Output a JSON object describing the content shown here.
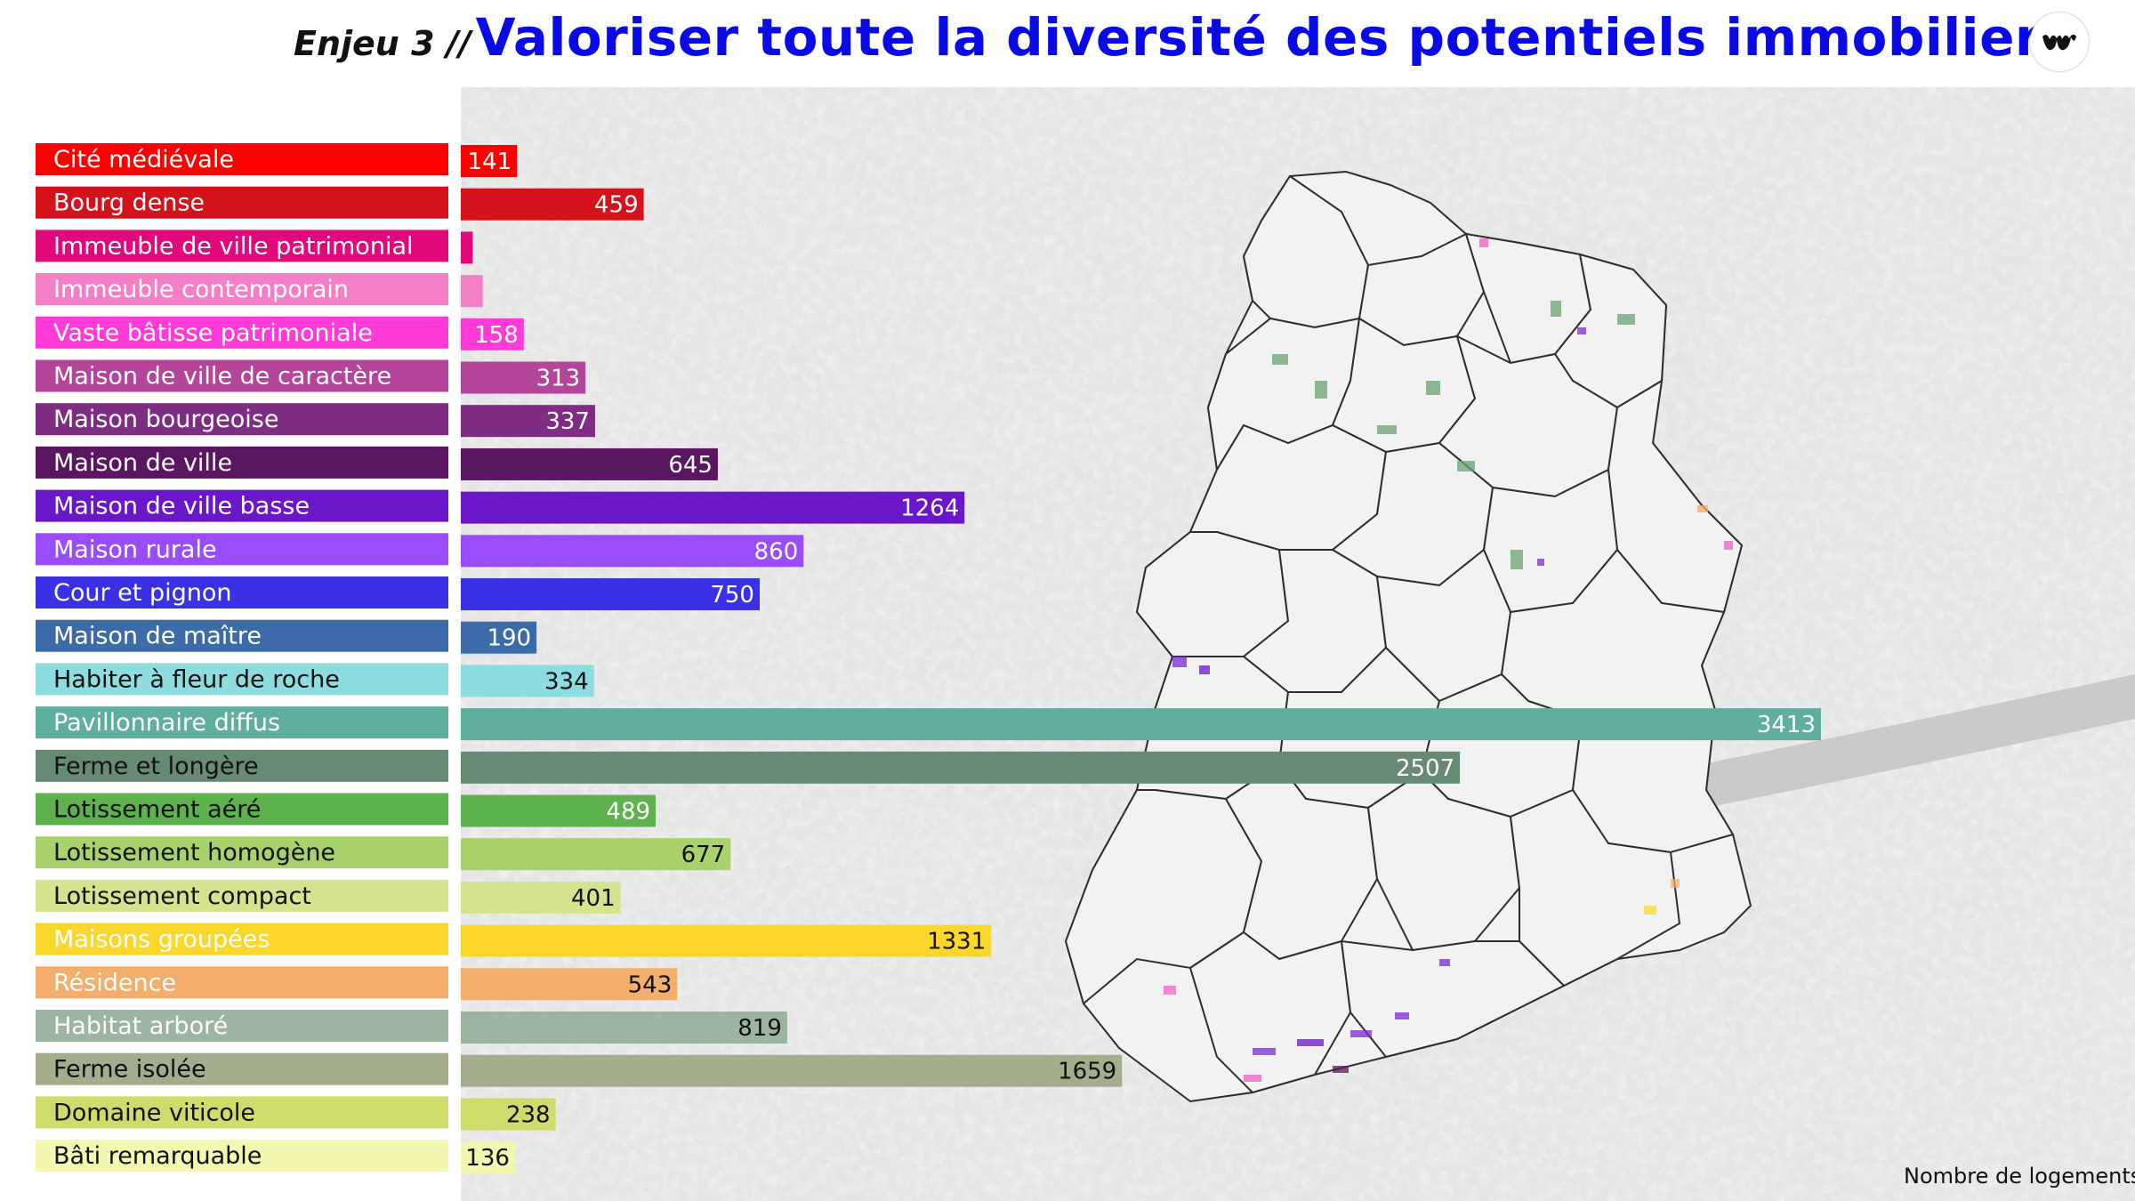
{
  "header": {
    "prefix": "Enjeu 3 //",
    "title": "Valoriser toute la diversité des potentiels immobiliers"
  },
  "footer": {
    "axis_note": "Nombre de logements"
  },
  "colors": {
    "title": "#0a0ae6",
    "map_background": "#d6d6d6"
  },
  "chart_data": {
    "type": "bar",
    "orientation": "horizontal",
    "categories": [
      "Cité médiévale",
      "Bourg dense",
      "Immeuble de ville patrimonial",
      "Immeuble contemporain",
      "Vaste bâtisse patrimoniale",
      "Maison de ville de caractère",
      "Maison bourgeoise",
      "Maison de ville",
      "Maison de ville basse",
      "Maison rurale",
      "Cour et pignon",
      "Maison de maître",
      "Habiter à fleur de roche",
      "Pavillonnaire diffus",
      "Ferme et longère",
      "Lotissement aéré",
      "Lotissement homogène",
      "Lotissement compact",
      "Maisons groupées",
      "Résidence",
      "Habitat arboré",
      "Ferme isolée",
      "Domaine viticole",
      "Bâti remarquable"
    ],
    "values": [
      141,
      459,
      30,
      55,
      158,
      313,
      337,
      645,
      1264,
      860,
      750,
      190,
      334,
      3413,
      2507,
      489,
      677,
      401,
      1331,
      543,
      819,
      1659,
      238,
      136
    ],
    "value_labels": [
      "141",
      "459",
      "",
      "",
      "158",
      "313",
      "337",
      "645",
      "1264",
      "860",
      "750",
      "190",
      "334",
      "3413",
      "2507",
      "489",
      "677",
      "401",
      "1331",
      "543",
      "819",
      "1659",
      "238",
      "136"
    ],
    "colors": [
      "#ff0000",
      "#d4121c",
      "#e0087a",
      "#f47fc4",
      "#ff3bd7",
      "#b5449b",
      "#7e2d82",
      "#5a1660",
      "#6a17c9",
      "#9a4cff",
      "#3a30e6",
      "#3d6aa8",
      "#8ddde0",
      "#5fae9e",
      "#678a72",
      "#5db24e",
      "#a8d26c",
      "#d5e38e",
      "#fcd72b",
      "#f2ae6a",
      "#9bb5a0",
      "#a3ad8c",
      "#cfdc6b",
      "#f3f7b0"
    ],
    "label_text_dark": [
      false,
      false,
      false,
      false,
      false,
      false,
      false,
      false,
      false,
      false,
      false,
      false,
      true,
      false,
      true,
      true,
      true,
      true,
      false,
      false,
      false,
      true,
      true,
      true
    ],
    "value_text_dark": [
      false,
      false,
      false,
      false,
      false,
      false,
      false,
      false,
      false,
      false,
      false,
      false,
      true,
      false,
      false,
      false,
      true,
      true,
      true,
      true,
      true,
      true,
      true,
      true
    ],
    "xlim": [
      0,
      3450
    ],
    "xlabel": "Nombre de logements",
    "ylabel": "",
    "title": "",
    "grid": false,
    "legend": "none"
  }
}
